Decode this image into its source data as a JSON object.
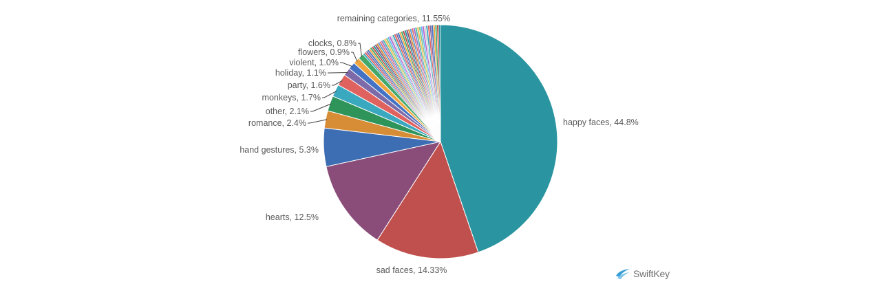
{
  "brand": {
    "name": "SwiftKey",
    "logo_color": "#3a9fd6"
  },
  "chart_data": {
    "type": "pie",
    "title": "",
    "slices": [
      {
        "label": "happy faces",
        "text": "happy faces, 44.8%",
        "value": 44.8,
        "color": "#2a95a0"
      },
      {
        "label": "sad faces",
        "text": "sad faces, 14.33%",
        "value": 14.33,
        "color": "#c0504d"
      },
      {
        "label": "hearts",
        "text": "hearts, 12.5%",
        "value": 12.5,
        "color": "#8a4d79"
      },
      {
        "label": "hand gestures",
        "text": "hand gestures, 5.3%",
        "value": 5.3,
        "color": "#3d6eb3"
      },
      {
        "label": "romance",
        "text": "romance, 2.4%",
        "value": 2.4,
        "color": "#d78d36"
      },
      {
        "label": "other",
        "text": "other, 2.1%",
        "value": 2.1,
        "color": "#2e9459"
      },
      {
        "label": "monkeys",
        "text": "monkeys, 1.7%",
        "value": 1.7,
        "color": "#3aa8bf"
      },
      {
        "label": "party",
        "text": "party, 1.6%",
        "value": 1.6,
        "color": "#e0625e"
      },
      {
        "label": "holiday",
        "text": "holiday, 1.1%",
        "value": 1.1,
        "color": "#7d6aa8"
      },
      {
        "label": "violent",
        "text": "violent, 1.0%",
        "value": 1.0,
        "color": "#4472c4"
      },
      {
        "label": "flowers",
        "text": "flowers, 0.9%",
        "value": 0.9,
        "color": "#f0a63c"
      },
      {
        "label": "clocks",
        "text": "clocks, 0.8%",
        "value": 0.8,
        "color": "#44a86a"
      },
      {
        "label": "remaining categories",
        "text": "remaining categories, 11.55%",
        "value": 11.55,
        "color": "#9aa0a8",
        "multicolor": true
      }
    ],
    "remaining_palette": [
      "#3aa8bf",
      "#e0625e",
      "#7d6aa8",
      "#4472c4",
      "#f0a63c",
      "#44a86a",
      "#c0504d",
      "#2a95a0",
      "#8a4d79",
      "#d78d36",
      "#5b9bd5",
      "#e57373",
      "#9575cd",
      "#4db6ac",
      "#f7b955",
      "#81c784",
      "#64b5f6",
      "#ba68c8",
      "#d0d4d9"
    ]
  }
}
